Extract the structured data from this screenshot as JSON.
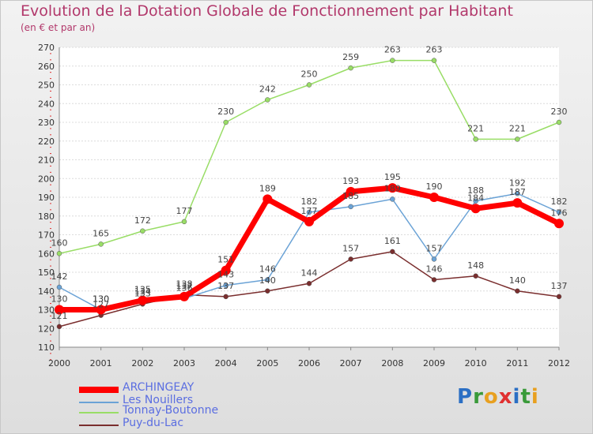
{
  "chart_data": {
    "type": "line",
    "title": "Evolution de la Dotation Globale de Fonctionnement par Habitant",
    "subtitle": "(en € et par an)",
    "xlabel": "",
    "ylabel": "",
    "x": [
      "2000",
      "2001",
      "2002",
      "2003",
      "2004",
      "2005",
      "2006",
      "2007",
      "2008",
      "2009",
      "2010",
      "2011",
      "2012"
    ],
    "ylim": [
      110,
      270
    ],
    "yticks": [
      110,
      120,
      130,
      140,
      150,
      160,
      170,
      180,
      190,
      200,
      210,
      220,
      230,
      240,
      250,
      260,
      270
    ],
    "grid": "horizontal",
    "legend": "bottom-left",
    "series": [
      {
        "name": "ARCHINGEAY",
        "color": "#ff0000",
        "values": [
          130,
          130,
          135,
          137,
          151,
          189,
          177,
          193,
          195,
          190,
          184,
          187,
          176
        ]
      },
      {
        "name": "Les Nouillers",
        "color": "#6ba3d6",
        "values": [
          142,
          130,
          134,
          136,
          143,
          146,
          182,
          185,
          189,
          157,
          188,
          192,
          182
        ]
      },
      {
        "name": "Tonnay-Boutonne",
        "color": "#99dd66",
        "values": [
          160,
          165,
          172,
          177,
          230,
          242,
          250,
          259,
          263,
          263,
          221,
          221,
          230
        ]
      },
      {
        "name": "Puy-du-Lac",
        "color": "#7a2e2e",
        "values": [
          121,
          127,
          133,
          138,
          137,
          140,
          144,
          157,
          161,
          146,
          148,
          140,
          137
        ]
      }
    ]
  },
  "logo": {
    "text": "Proxiti"
  }
}
